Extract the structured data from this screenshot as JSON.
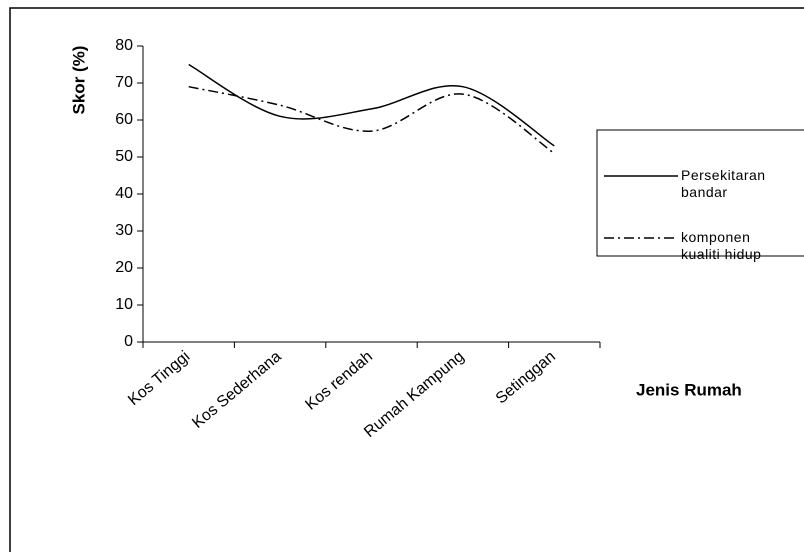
{
  "chart_data": {
    "type": "line",
    "y_label": "Skor (%)",
    "x_label": "Jenis Rumah",
    "categories": [
      "Kos Tinggi",
      "Kos Sederhana",
      "Kos rendah",
      "Rumah Kampung",
      "Setinggan"
    ],
    "series": [
      {
        "name": "Persekitaran bandar",
        "color": "#000000",
        "dash": "solid",
        "values": [
          75,
          61,
          63,
          69,
          53
        ]
      },
      {
        "name": "komponen kualiti hidup",
        "color": "#000000",
        "dash": "dashdot",
        "values": [
          69,
          64,
          57,
          67,
          51
        ]
      }
    ],
    "ylim": [
      0,
      80
    ],
    "yticks": [
      0,
      10,
      20,
      30,
      40,
      50,
      60,
      70,
      80
    ],
    "grid": false,
    "legend": "right",
    "smooth": true
  }
}
